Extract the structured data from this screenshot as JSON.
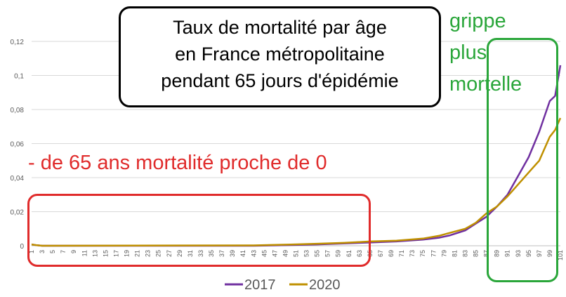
{
  "chart_data": {
    "type": "line",
    "title_lines": [
      "Taux de mortalité par âge",
      "en France métropolitaine",
      "pendant 65 jours d'épidémie"
    ],
    "xlabel": "",
    "ylabel": "",
    "ylim": [
      0,
      0.12
    ],
    "yticks": [
      0,
      0.02,
      0.04,
      0.06,
      0.08,
      0.1,
      0.12
    ],
    "ytick_labels": [
      "0",
      "0,02",
      "0,04",
      "0,06",
      "0,08",
      "0,1",
      "0,12"
    ],
    "x_tick_labels": [
      "1",
      "3",
      "5",
      "7",
      "9",
      "11",
      "13",
      "15",
      "17",
      "19",
      "21",
      "23",
      "25",
      "27",
      "29",
      "31",
      "33",
      "35",
      "37",
      "39",
      "41",
      "43",
      "45",
      "47",
      "49",
      "51",
      "53",
      "55",
      "57",
      "59",
      "61",
      "63",
      "65",
      "67",
      "69",
      "71",
      "73",
      "75",
      "77",
      "79",
      "81",
      "83",
      "85",
      "87",
      "89",
      "91",
      "93",
      "95",
      "97",
      "99",
      "101"
    ],
    "grid": true,
    "legend_position": "bottom",
    "series": [
      {
        "name": "2017",
        "color": "#7030a0",
        "points": [
          [
            1,
            0.0008
          ],
          [
            2,
            0.0003
          ],
          [
            3,
            0
          ],
          [
            43,
            0
          ],
          [
            50,
            0.0004
          ],
          [
            55,
            0.0008
          ],
          [
            60,
            0.0013
          ],
          [
            63,
            0.0017
          ],
          [
            65,
            0.0019
          ],
          [
            70,
            0.0025
          ],
          [
            75,
            0.0036
          ],
          [
            78,
            0.0047
          ],
          [
            80,
            0.006
          ],
          [
            83,
            0.009
          ],
          [
            85,
            0.013
          ],
          [
            87,
            0.017
          ],
          [
            88,
            0.02
          ],
          [
            89,
            0.023
          ],
          [
            91,
            0.03
          ],
          [
            93,
            0.041
          ],
          [
            95,
            0.052
          ],
          [
            97,
            0.067
          ],
          [
            99,
            0.085
          ],
          [
            100,
            0.088
          ],
          [
            101,
            0.106
          ]
        ]
      },
      {
        "name": "2020",
        "color": "#bf9000",
        "points": [
          [
            1,
            0.0008
          ],
          [
            2,
            0.0003
          ],
          [
            3,
            0
          ],
          [
            43,
            0.0002
          ],
          [
            50,
            0.0007
          ],
          [
            55,
            0.0012
          ],
          [
            60,
            0.0017
          ],
          [
            63,
            0.0022
          ],
          [
            65,
            0.0025
          ],
          [
            70,
            0.003
          ],
          [
            75,
            0.0042
          ],
          [
            78,
            0.0058
          ],
          [
            80,
            0.0075
          ],
          [
            83,
            0.01
          ],
          [
            85,
            0.0135
          ],
          [
            87,
            0.019
          ],
          [
            88,
            0.021
          ],
          [
            89,
            0.023
          ],
          [
            91,
            0.029
          ],
          [
            93,
            0.036
          ],
          [
            95,
            0.043
          ],
          [
            97,
            0.05
          ],
          [
            99,
            0.064
          ],
          [
            100,
            0.068
          ],
          [
            101,
            0.075
          ]
        ]
      }
    ]
  },
  "annotations": {
    "red_caption": "- de 65 ans mortalité proche de 0",
    "green_caption_lines": [
      "grippe",
      "plus",
      "mortelle"
    ]
  },
  "colors": {
    "red_annotation": "#e02b2b",
    "green_annotation": "#2aa63a",
    "gridline": "#d9d9d9",
    "axis": "#bfbfbf"
  }
}
